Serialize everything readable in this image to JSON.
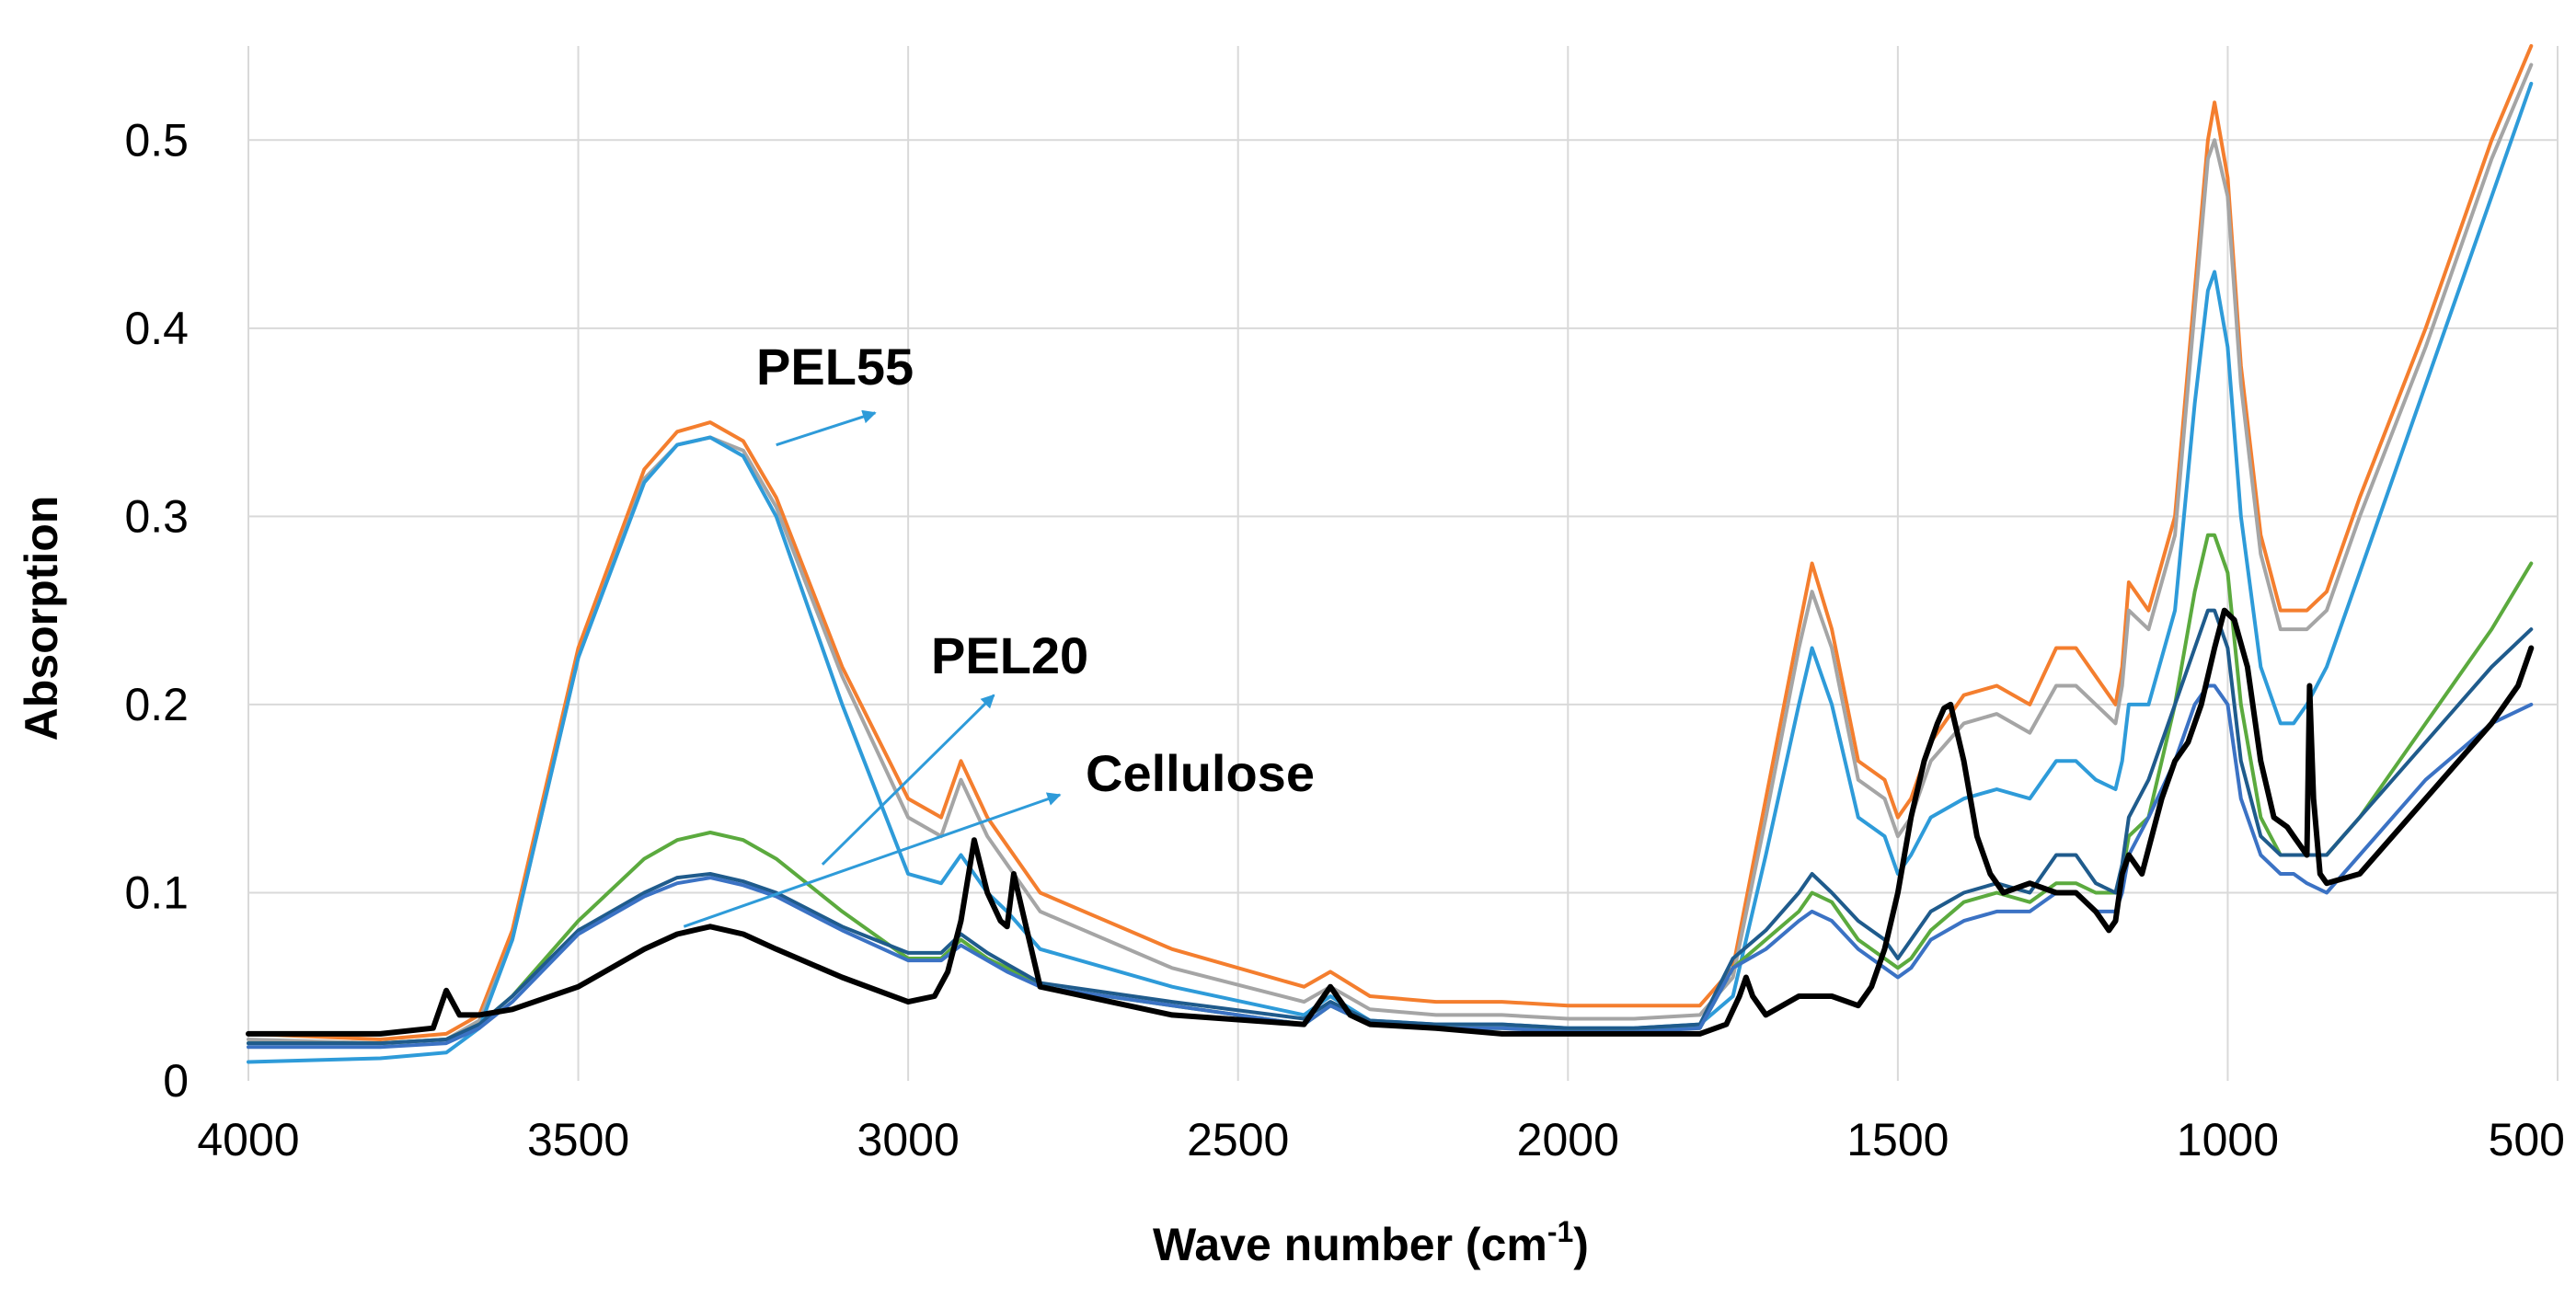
{
  "chart_data": {
    "type": "line",
    "title": "",
    "xlabel": "Wave number (cm",
    "xlabel_superscript": "-1",
    "xlabel_suffix": ")",
    "ylabel": "Absorption",
    "xlim": [
      4000,
      500
    ],
    "ylim": [
      0,
      0.55
    ],
    "x_reversed": true,
    "grid": true,
    "x_ticks": [
      4000,
      3500,
      3000,
      2500,
      2000,
      1500,
      1000,
      500
    ],
    "y_ticks": [
      0,
      0.1,
      0.2,
      0.3,
      0.4,
      0.5
    ],
    "y_tick_labels": [
      "0",
      "0.1",
      "0.2",
      "0.3",
      "0.4",
      "0.5"
    ],
    "annotations": [
      {
        "text": "PEL55",
        "target": "Series 1"
      },
      {
        "text": "PEL20",
        "target": "Series 4"
      },
      {
        "text": "Cellulose",
        "target": "Series 7"
      }
    ],
    "series": [
      {
        "name": "Series 1",
        "color": "#F47E2E",
        "width": 4,
        "x": [
          4000,
          3800,
          3700,
          3650,
          3600,
          3500,
          3400,
          3350,
          3300,
          3250,
          3200,
          3100,
          3000,
          2950,
          2920,
          2880,
          2850,
          2800,
          2600,
          2400,
          2360,
          2300,
          2200,
          2100,
          2000,
          1900,
          1800,
          1750,
          1700,
          1650,
          1630,
          1600,
          1560,
          1520,
          1500,
          1480,
          1450,
          1400,
          1350,
          1300,
          1260,
          1230,
          1200,
          1170,
          1160,
          1150,
          1120,
          1080,
          1050,
          1030,
          1020,
          1000,
          980,
          950,
          920,
          900,
          880,
          850,
          800,
          700,
          600,
          540
        ],
        "y": [
          0.025,
          0.022,
          0.025,
          0.035,
          0.08,
          0.23,
          0.325,
          0.345,
          0.35,
          0.34,
          0.31,
          0.22,
          0.15,
          0.14,
          0.17,
          0.14,
          0.125,
          0.1,
          0.07,
          0.05,
          0.058,
          0.045,
          0.042,
          0.042,
          0.04,
          0.04,
          0.04,
          0.06,
          0.15,
          0.24,
          0.275,
          0.24,
          0.17,
          0.16,
          0.14,
          0.15,
          0.18,
          0.205,
          0.21,
          0.2,
          0.23,
          0.23,
          0.215,
          0.2,
          0.22,
          0.265,
          0.25,
          0.3,
          0.42,
          0.5,
          0.52,
          0.48,
          0.38,
          0.29,
          0.25,
          0.25,
          0.25,
          0.26,
          0.31,
          0.4,
          0.5,
          0.55
        ]
      },
      {
        "name": "Series 2",
        "color": "#A5A5A5",
        "width": 4,
        "x": [
          4000,
          3800,
          3700,
          3650,
          3600,
          3500,
          3400,
          3350,
          3300,
          3250,
          3200,
          3100,
          3000,
          2950,
          2920,
          2880,
          2850,
          2800,
          2600,
          2400,
          2360,
          2300,
          2200,
          2100,
          2000,
          1900,
          1800,
          1750,
          1700,
          1650,
          1630,
          1600,
          1560,
          1520,
          1500,
          1480,
          1450,
          1400,
          1350,
          1300,
          1260,
          1230,
          1200,
          1170,
          1160,
          1150,
          1120,
          1080,
          1050,
          1030,
          1020,
          1000,
          980,
          950,
          920,
          900,
          880,
          850,
          800,
          700,
          600,
          540
        ],
        "y": [
          0.022,
          0.02,
          0.022,
          0.032,
          0.075,
          0.225,
          0.32,
          0.338,
          0.342,
          0.335,
          0.305,
          0.215,
          0.14,
          0.13,
          0.16,
          0.13,
          0.115,
          0.09,
          0.06,
          0.042,
          0.05,
          0.038,
          0.035,
          0.035,
          0.033,
          0.033,
          0.035,
          0.055,
          0.14,
          0.23,
          0.26,
          0.23,
          0.16,
          0.15,
          0.13,
          0.14,
          0.17,
          0.19,
          0.195,
          0.185,
          0.21,
          0.21,
          0.2,
          0.19,
          0.21,
          0.25,
          0.24,
          0.29,
          0.41,
          0.49,
          0.5,
          0.47,
          0.37,
          0.28,
          0.24,
          0.24,
          0.24,
          0.25,
          0.3,
          0.39,
          0.49,
          0.54
        ]
      },
      {
        "name": "Series 3",
        "color": "#2E9BD9",
        "width": 4,
        "x": [
          4000,
          3800,
          3700,
          3650,
          3600,
          3500,
          3400,
          3350,
          3300,
          3250,
          3200,
          3100,
          3000,
          2950,
          2920,
          2880,
          2850,
          2800,
          2600,
          2400,
          2360,
          2300,
          2200,
          2100,
          2000,
          1900,
          1800,
          1750,
          1700,
          1650,
          1630,
          1600,
          1560,
          1520,
          1500,
          1480,
          1450,
          1400,
          1350,
          1300,
          1260,
          1230,
          1200,
          1170,
          1160,
          1150,
          1120,
          1080,
          1050,
          1030,
          1020,
          1000,
          980,
          950,
          920,
          900,
          880,
          850,
          800,
          700,
          600,
          540
        ],
        "y": [
          0.01,
          0.012,
          0.015,
          0.028,
          0.075,
          0.225,
          0.318,
          0.338,
          0.342,
          0.332,
          0.3,
          0.2,
          0.11,
          0.105,
          0.12,
          0.1,
          0.09,
          0.07,
          0.05,
          0.035,
          0.045,
          0.032,
          0.03,
          0.03,
          0.028,
          0.028,
          0.03,
          0.045,
          0.12,
          0.2,
          0.23,
          0.2,
          0.14,
          0.13,
          0.11,
          0.12,
          0.14,
          0.15,
          0.155,
          0.15,
          0.17,
          0.17,
          0.16,
          0.155,
          0.17,
          0.2,
          0.2,
          0.25,
          0.36,
          0.42,
          0.43,
          0.39,
          0.3,
          0.22,
          0.19,
          0.19,
          0.2,
          0.22,
          0.27,
          0.37,
          0.47,
          0.53
        ]
      },
      {
        "name": "Series 4",
        "color": "#5BAA3E",
        "width": 4,
        "x": [
          4000,
          3800,
          3700,
          3650,
          3600,
          3500,
          3400,
          3350,
          3300,
          3250,
          3200,
          3100,
          3000,
          2950,
          2920,
          2880,
          2850,
          2800,
          2600,
          2400,
          2360,
          2300,
          2200,
          2100,
          2000,
          1900,
          1800,
          1750,
          1700,
          1650,
          1630,
          1600,
          1560,
          1520,
          1500,
          1480,
          1450,
          1400,
          1350,
          1300,
          1260,
          1230,
          1200,
          1170,
          1160,
          1150,
          1120,
          1080,
          1050,
          1030,
          1020,
          1000,
          980,
          950,
          920,
          900,
          880,
          850,
          800,
          700,
          600,
          540
        ],
        "y": [
          0.02,
          0.02,
          0.022,
          0.03,
          0.045,
          0.085,
          0.118,
          0.128,
          0.132,
          0.128,
          0.118,
          0.09,
          0.065,
          0.065,
          0.075,
          0.065,
          0.06,
          0.05,
          0.04,
          0.03,
          0.04,
          0.03,
          0.028,
          0.028,
          0.027,
          0.027,
          0.028,
          0.06,
          0.075,
          0.09,
          0.1,
          0.095,
          0.075,
          0.065,
          0.06,
          0.065,
          0.08,
          0.095,
          0.1,
          0.095,
          0.105,
          0.105,
          0.1,
          0.1,
          0.11,
          0.13,
          0.14,
          0.2,
          0.26,
          0.29,
          0.29,
          0.27,
          0.2,
          0.14,
          0.12,
          0.12,
          0.12,
          0.12,
          0.14,
          0.19,
          0.24,
          0.275
        ]
      },
      {
        "name": "Series 5",
        "color": "#1F5B8C",
        "width": 4,
        "x": [
          4000,
          3800,
          3700,
          3650,
          3600,
          3500,
          3400,
          3350,
          3300,
          3250,
          3200,
          3100,
          3000,
          2950,
          2920,
          2880,
          2850,
          2800,
          2600,
          2400,
          2360,
          2300,
          2200,
          2100,
          2000,
          1900,
          1800,
          1750,
          1700,
          1650,
          1630,
          1600,
          1560,
          1520,
          1500,
          1480,
          1450,
          1400,
          1350,
          1300,
          1260,
          1230,
          1200,
          1170,
          1160,
          1150,
          1120,
          1080,
          1050,
          1030,
          1020,
          1000,
          980,
          950,
          920,
          900,
          880,
          850,
          800,
          700,
          600,
          540
        ],
        "y": [
          0.02,
          0.02,
          0.022,
          0.03,
          0.045,
          0.08,
          0.1,
          0.108,
          0.11,
          0.106,
          0.1,
          0.082,
          0.068,
          0.068,
          0.078,
          0.068,
          0.062,
          0.052,
          0.042,
          0.033,
          0.042,
          0.032,
          0.03,
          0.03,
          0.028,
          0.028,
          0.03,
          0.065,
          0.08,
          0.1,
          0.11,
          0.1,
          0.085,
          0.075,
          0.065,
          0.075,
          0.09,
          0.1,
          0.105,
          0.1,
          0.12,
          0.12,
          0.105,
          0.1,
          0.115,
          0.14,
          0.16,
          0.2,
          0.23,
          0.25,
          0.25,
          0.23,
          0.17,
          0.13,
          0.12,
          0.12,
          0.12,
          0.12,
          0.14,
          0.18,
          0.22,
          0.24
        ]
      },
      {
        "name": "Series 6",
        "color": "#3B72C4",
        "width": 4,
        "x": [
          4000,
          3800,
          3700,
          3650,
          3600,
          3500,
          3400,
          3350,
          3300,
          3250,
          3200,
          3100,
          3000,
          2950,
          2920,
          2880,
          2850,
          2800,
          2600,
          2400,
          2360,
          2300,
          2200,
          2100,
          2000,
          1900,
          1800,
          1750,
          1700,
          1650,
          1630,
          1600,
          1560,
          1520,
          1500,
          1480,
          1450,
          1400,
          1350,
          1300,
          1260,
          1230,
          1200,
          1170,
          1160,
          1150,
          1120,
          1080,
          1050,
          1030,
          1020,
          1000,
          980,
          950,
          920,
          900,
          880,
          850,
          800,
          700,
          600,
          540
        ],
        "y": [
          0.018,
          0.018,
          0.02,
          0.028,
          0.042,
          0.078,
          0.098,
          0.105,
          0.108,
          0.104,
          0.098,
          0.08,
          0.064,
          0.064,
          0.072,
          0.064,
          0.058,
          0.05,
          0.04,
          0.03,
          0.04,
          0.03,
          0.028,
          0.028,
          0.026,
          0.026,
          0.028,
          0.06,
          0.07,
          0.085,
          0.09,
          0.085,
          0.07,
          0.06,
          0.055,
          0.06,
          0.075,
          0.085,
          0.09,
          0.09,
          0.1,
          0.1,
          0.09,
          0.09,
          0.1,
          0.12,
          0.14,
          0.17,
          0.2,
          0.21,
          0.21,
          0.2,
          0.15,
          0.12,
          0.11,
          0.11,
          0.105,
          0.1,
          0.12,
          0.16,
          0.19,
          0.2
        ]
      },
      {
        "name": "Series 7",
        "color": "#000000",
        "width": 6,
        "x": [
          4000,
          3800,
          3720,
          3700,
          3680,
          3650,
          3600,
          3500,
          3400,
          3350,
          3300,
          3250,
          3200,
          3100,
          3000,
          2960,
          2940,
          2920,
          2900,
          2880,
          2860,
          2850,
          2840,
          2800,
          2600,
          2400,
          2360,
          2350,
          2330,
          2300,
          2200,
          2100,
          2000,
          1900,
          1800,
          1760,
          1740,
          1730,
          1720,
          1700,
          1650,
          1600,
          1560,
          1540,
          1520,
          1500,
          1480,
          1460,
          1440,
          1430,
          1420,
          1400,
          1380,
          1360,
          1340,
          1300,
          1260,
          1230,
          1200,
          1180,
          1170,
          1160,
          1150,
          1130,
          1100,
          1080,
          1060,
          1040,
          1020,
          1005,
          990,
          970,
          950,
          930,
          910,
          900,
          890,
          880,
          876,
          874,
          870,
          860,
          850,
          800,
          750,
          700,
          650,
          600,
          560,
          540
        ],
        "y": [
          0.025,
          0.025,
          0.028,
          0.048,
          0.035,
          0.035,
          0.038,
          0.05,
          0.07,
          0.078,
          0.082,
          0.078,
          0.07,
          0.055,
          0.042,
          0.045,
          0.058,
          0.085,
          0.128,
          0.1,
          0.085,
          0.082,
          0.11,
          0.05,
          0.035,
          0.03,
          0.05,
          0.045,
          0.035,
          0.03,
          0.028,
          0.025,
          0.025,
          0.025,
          0.025,
          0.03,
          0.045,
          0.055,
          0.045,
          0.035,
          0.045,
          0.045,
          0.04,
          0.05,
          0.07,
          0.1,
          0.14,
          0.17,
          0.19,
          0.198,
          0.2,
          0.17,
          0.13,
          0.11,
          0.1,
          0.105,
          0.1,
          0.1,
          0.09,
          0.08,
          0.085,
          0.11,
          0.12,
          0.11,
          0.15,
          0.17,
          0.18,
          0.2,
          0.23,
          0.25,
          0.245,
          0.22,
          0.17,
          0.14,
          0.135,
          0.13,
          0.125,
          0.12,
          0.21,
          0.19,
          0.15,
          0.11,
          0.105,
          0.11,
          0.13,
          0.15,
          0.17,
          0.19,
          0.21,
          0.23
        ]
      }
    ]
  }
}
